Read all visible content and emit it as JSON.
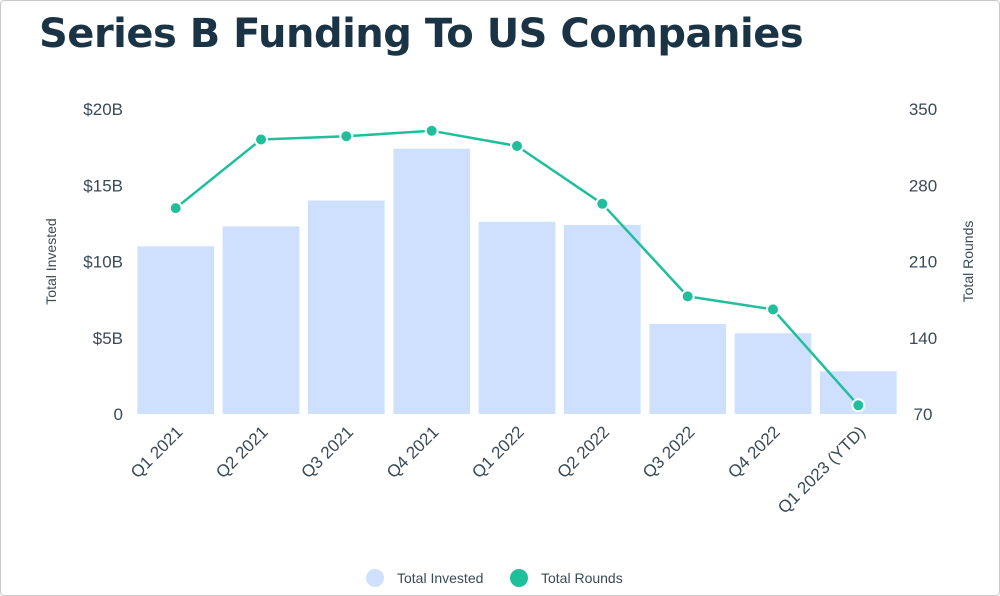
{
  "chart_data": {
    "type": "bar",
    "title": "Series B Funding To US Companies",
    "categories": [
      "Q1 2021",
      "Q2 2021",
      "Q3 2021",
      "Q4 2021",
      "Q1 2022",
      "Q2 2022",
      "Q3 2022",
      "Q4 2022",
      "Q1 2023 (YTD)"
    ],
    "series": [
      {
        "name": "Total Invested",
        "kind": "bar",
        "axis": "left",
        "values": [
          11.0,
          12.3,
          14.0,
          17.4,
          12.6,
          12.4,
          5.9,
          5.3,
          2.8
        ]
      },
      {
        "name": "Total Rounds",
        "kind": "line",
        "axis": "right",
        "values": [
          259,
          322,
          325,
          330,
          316,
          263,
          178,
          166,
          78
        ]
      }
    ],
    "y_left": {
      "label": "Total Invested",
      "range": [
        0,
        20
      ],
      "ticks": [
        0,
        5,
        10,
        15,
        20
      ],
      "tick_labels": [
        "0",
        "$5B",
        "$10B",
        "$15B",
        "$20B"
      ]
    },
    "y_right": {
      "label": "Total Rounds",
      "range": [
        70,
        350
      ],
      "ticks": [
        70,
        140,
        210,
        280,
        350
      ],
      "tick_labels": [
        "70",
        "140",
        "210",
        "280",
        "350"
      ]
    },
    "grid": false,
    "legend_position": "bottom-center",
    "colors": {
      "bar": "#cfe0ff",
      "line": "#1fbf9c",
      "text": "#3a4a56",
      "title": "#1b3445"
    }
  }
}
